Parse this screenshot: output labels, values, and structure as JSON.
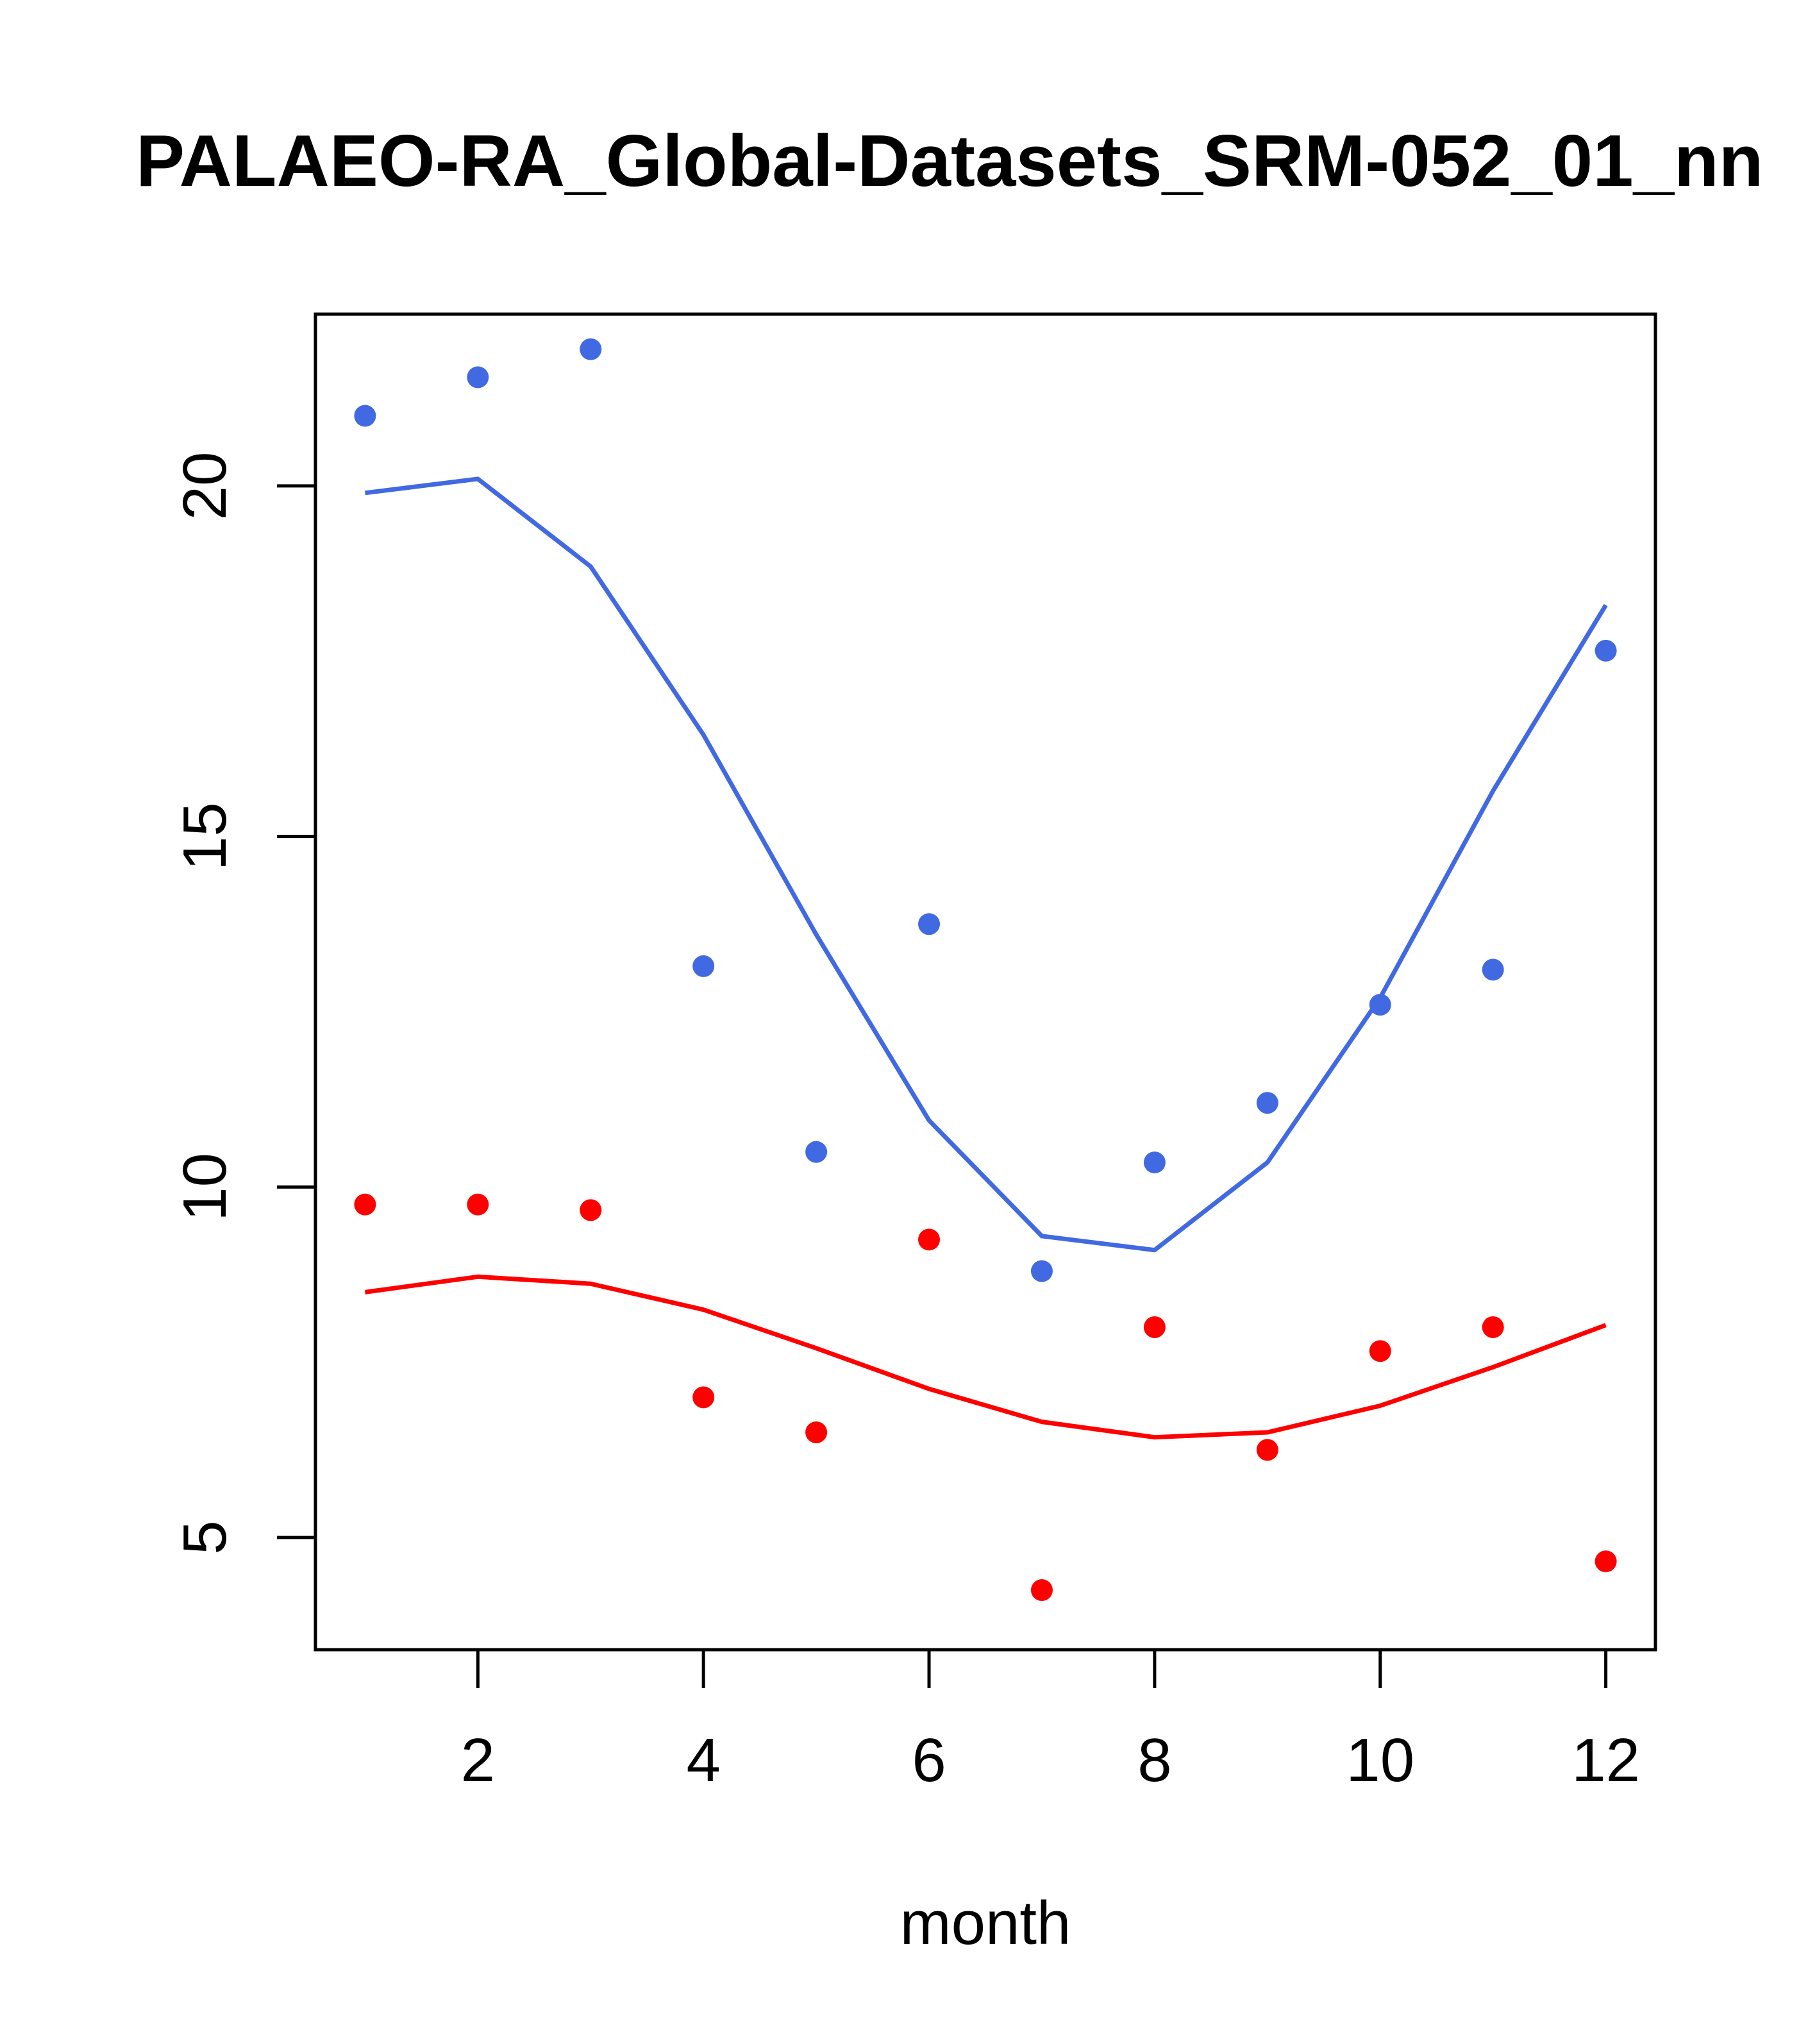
{
  "chart_data": {
    "type": "line",
    "title": "PALAEO-RA_Global-Datasets_SRM-052_01_nn",
    "xlabel": "month",
    "ylabel": "",
    "xlim": [
      0.56,
      12.44
    ],
    "ylim": [
      3.4,
      22.45
    ],
    "x_ticks": [
      2,
      4,
      6,
      8,
      10,
      12
    ],
    "y_ticks": [
      5,
      10,
      15,
      20
    ],
    "x": [
      1,
      2,
      3,
      4,
      5,
      6,
      7,
      8,
      9,
      10,
      11,
      12
    ],
    "series": [
      {
        "name": "blue points",
        "kind": "points",
        "color": "#4169E1",
        "values": [
          21.0,
          21.55,
          21.95,
          13.15,
          10.5,
          13.75,
          8.8,
          10.35,
          11.2,
          12.6,
          13.1,
          17.65
        ]
      },
      {
        "name": "blue line",
        "kind": "line",
        "color": "#4169E1",
        "values": [
          19.9,
          20.1,
          18.85,
          16.45,
          13.6,
          10.95,
          9.3,
          9.1,
          10.35,
          12.7,
          15.65,
          18.3
        ]
      },
      {
        "name": "red points",
        "kind": "points",
        "color": "#FF0000",
        "values": [
          9.75,
          9.75,
          9.67,
          7.0,
          6.5,
          9.25,
          4.25,
          8.0,
          6.25,
          7.66,
          8.0,
          4.66
        ]
      },
      {
        "name": "red line",
        "kind": "line",
        "color": "#FF0000",
        "values": [
          8.5,
          8.72,
          8.62,
          8.25,
          7.7,
          7.12,
          6.65,
          6.43,
          6.5,
          6.88,
          7.43,
          8.03
        ]
      }
    ]
  }
}
